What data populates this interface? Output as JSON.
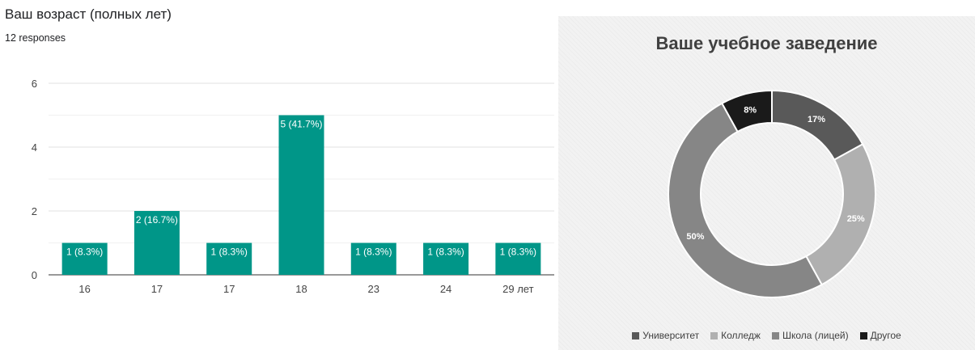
{
  "chart_data": [
    {
      "type": "bar",
      "title": "Ваш возраст (полных лет)",
      "subtitle": "12 responses",
      "categories": [
        "16",
        "17",
        "17",
        "18",
        "23",
        "24",
        "29 лет"
      ],
      "values": [
        1,
        2,
        1,
        5,
        1,
        1,
        1
      ],
      "data_labels": [
        "1 (8.3%)",
        "2 (16.7%)",
        "1 (8.3%)",
        "5 (41.7%)",
        "1 (8.3%)",
        "1 (8.3%)",
        "1 (8.3%)"
      ],
      "yticks": [
        "0",
        "2",
        "4",
        "6"
      ],
      "ylim": [
        0,
        6
      ],
      "grid": true,
      "color": "#009688"
    },
    {
      "type": "pie",
      "title": "Ваше учебное заведение",
      "labels": [
        "Университет",
        "Колледж",
        "Школа (лицей)",
        "Другое"
      ],
      "values": [
        17,
        25,
        50,
        8
      ],
      "data_labels": [
        "17%",
        "25%",
        "50%",
        "8%"
      ],
      "colors": [
        "#595959",
        "#b0b0b0",
        "#868686",
        "#1a1a1a"
      ],
      "legend_position": "bottom"
    }
  ]
}
